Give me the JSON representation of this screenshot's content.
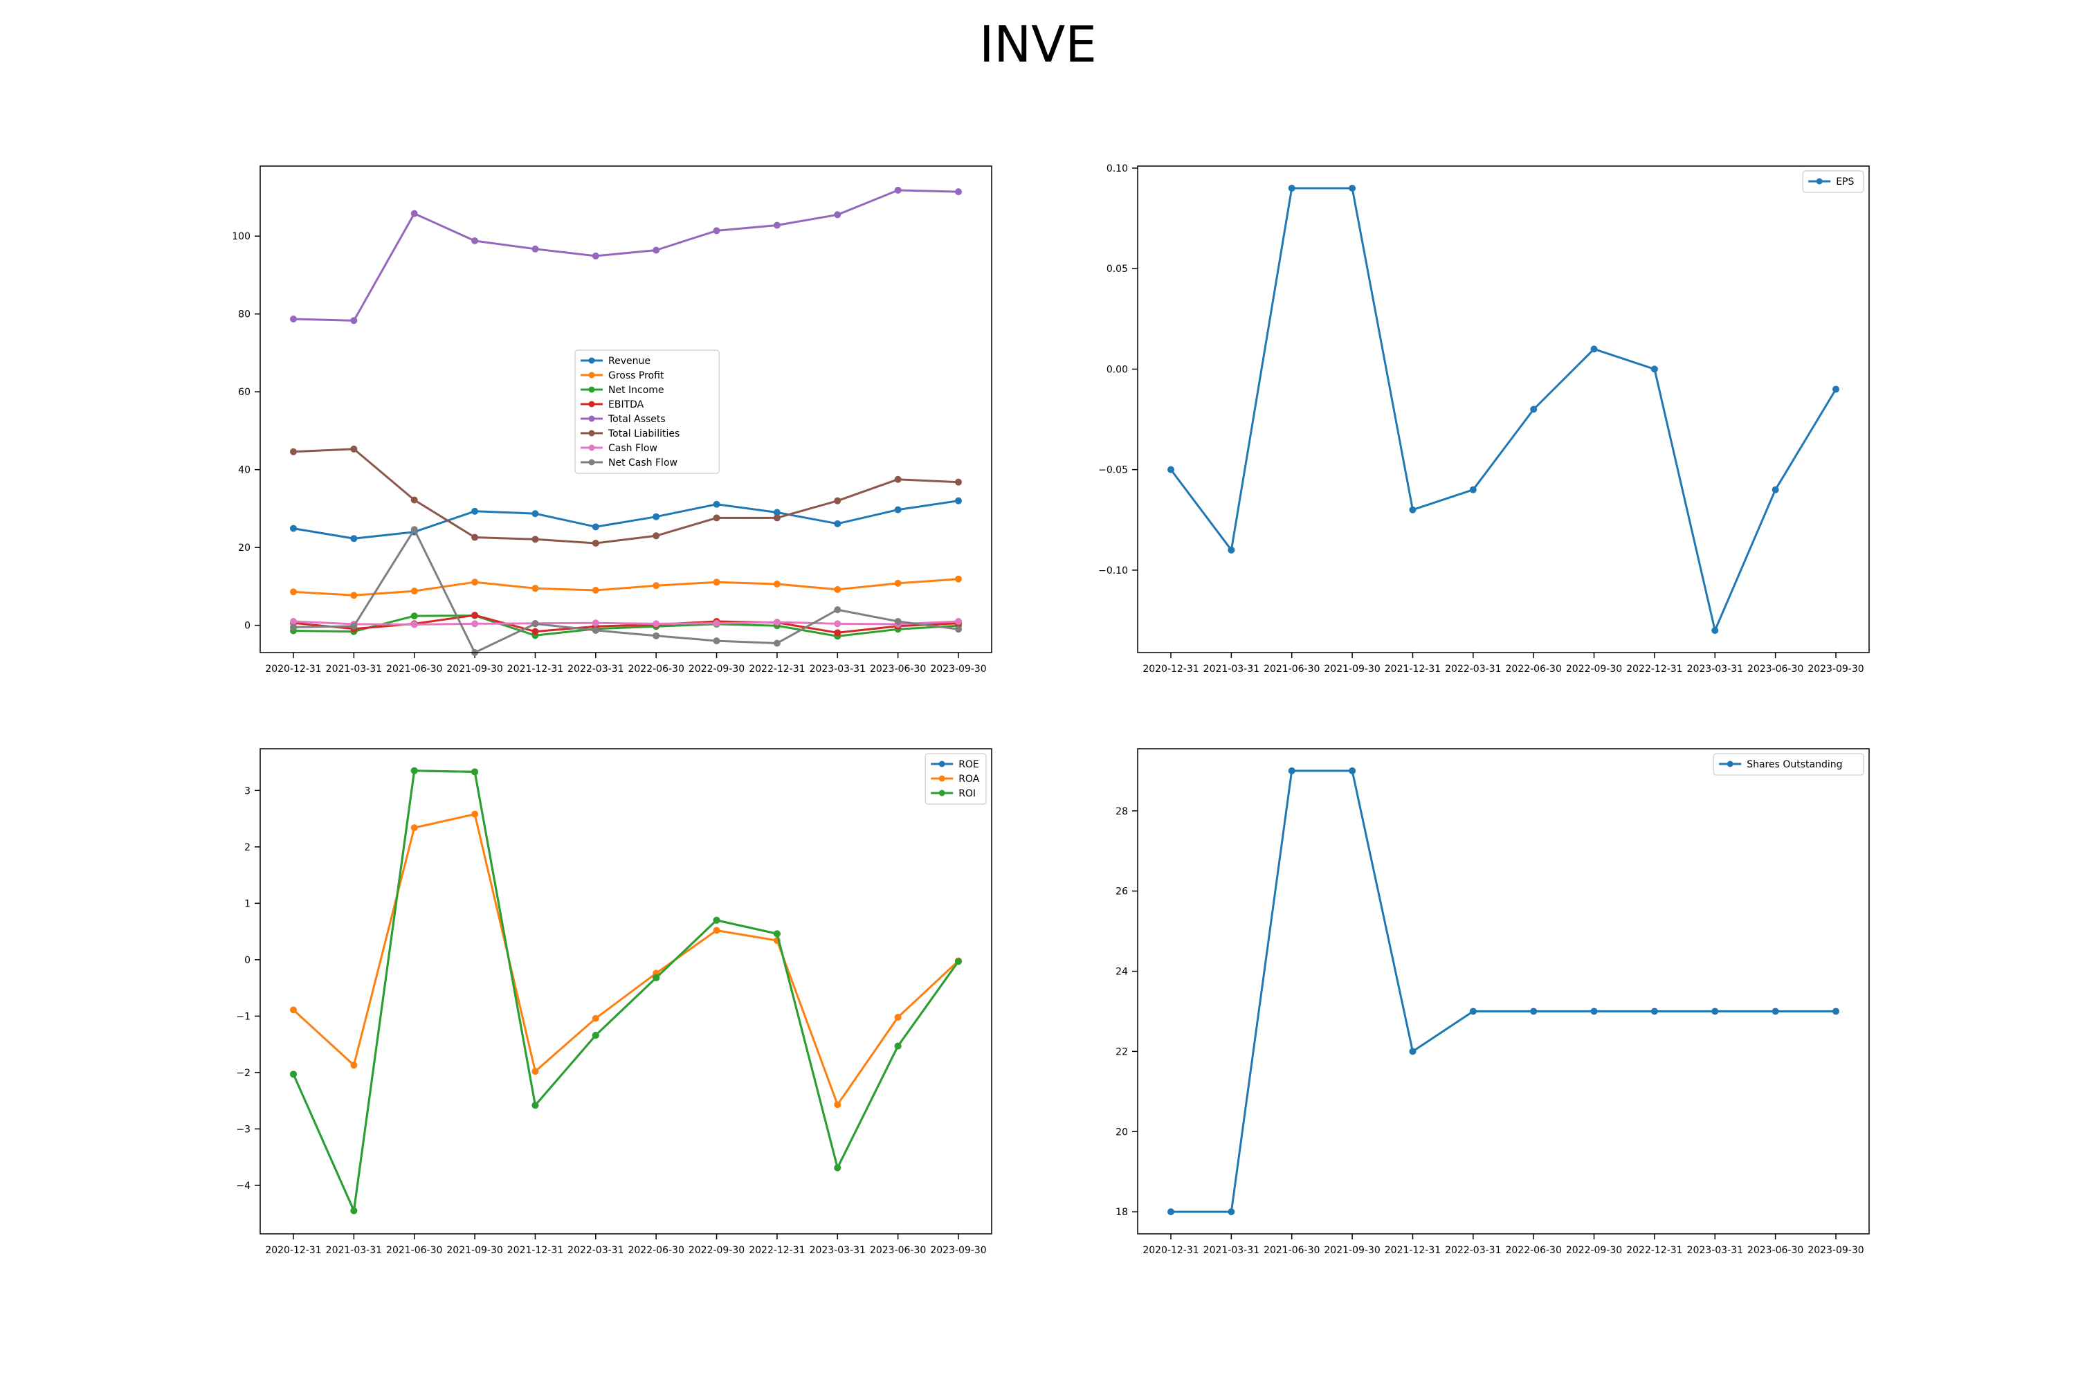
{
  "title": "INVE",
  "chart_data": [
    {
      "type": "line",
      "x": [
        "2020-12-31",
        "2021-03-31",
        "2021-06-30",
        "2021-09-30",
        "2021-12-31",
        "2022-03-31",
        "2022-06-30",
        "2022-09-30",
        "2022-12-31",
        "2023-03-31",
        "2023-06-30",
        "2023-09-30"
      ],
      "ylim": [
        -7,
        118
      ],
      "yticks": [
        0,
        20,
        40,
        60,
        80,
        100
      ],
      "legend": "center",
      "series": [
        {
          "name": "Revenue",
          "color": "#1f77b4",
          "values": [
            24.9,
            22.3,
            24.0,
            29.3,
            28.7,
            25.3,
            27.9,
            31.1,
            29.0,
            26.1,
            29.7,
            32.0
          ]
        },
        {
          "name": "Gross Profit",
          "color": "#ff7f0e",
          "values": [
            8.6,
            7.7,
            8.8,
            11.1,
            9.5,
            9.0,
            10.2,
            11.1,
            10.6,
            9.2,
            10.8,
            11.9
          ]
        },
        {
          "name": "Net Income",
          "color": "#2ca02c",
          "values": [
            -1.4,
            -1.6,
            2.4,
            2.5,
            -2.6,
            -0.9,
            -0.3,
            0.3,
            -0.1,
            -2.8,
            -1.0,
            -0.1
          ]
        },
        {
          "name": "EBITDA",
          "color": "#d62728",
          "values": [
            0.6,
            -0.9,
            0.4,
            2.6,
            -1.6,
            -0.3,
            0.2,
            1.0,
            0.7,
            -1.9,
            -0.2,
            0.5
          ]
        },
        {
          "name": "Total Assets",
          "color": "#9467bd",
          "values": [
            78.7,
            78.3,
            105.8,
            98.8,
            96.7,
            94.9,
            96.4,
            101.4,
            102.8,
            105.5,
            111.8,
            111.4
          ]
        },
        {
          "name": "Total Liabilities",
          "color": "#8c564b",
          "values": [
            44.6,
            45.3,
            32.2,
            22.6,
            22.1,
            21.1,
            23.0,
            27.6,
            27.6,
            32.0,
            37.5,
            36.8
          ]
        },
        {
          "name": "Cash Flow",
          "color": "#e377c2",
          "values": [
            1.0,
            0.3,
            0.2,
            0.4,
            0.5,
            0.6,
            0.4,
            0.5,
            0.8,
            0.4,
            0.3,
            1.0
          ]
        },
        {
          "name": "Net Cash Flow",
          "color": "#7f7f7f",
          "values": [
            -0.5,
            -0.2,
            24.6,
            -7.0,
            0.4,
            -1.3,
            -2.7,
            -4.0,
            -4.6,
            4.0,
            1.0,
            -1.0
          ]
        }
      ]
    },
    {
      "type": "line",
      "x": [
        "2020-12-31",
        "2021-03-31",
        "2021-06-30",
        "2021-09-30",
        "2021-12-31",
        "2022-03-31",
        "2022-06-30",
        "2022-09-30",
        "2022-12-31",
        "2023-03-31",
        "2023-06-30",
        "2023-09-30"
      ],
      "ylim": [
        -0.141,
        0.101
      ],
      "yticks": [
        -0.1,
        -0.05,
        0.0,
        0.05,
        0.1
      ],
      "ytick_labels": [
        "−0.10",
        "−0.05",
        "0.00",
        "0.05",
        "0.10"
      ],
      "legend": "top-right",
      "series": [
        {
          "name": "EPS",
          "color": "#1f77b4",
          "values": [
            -0.05,
            -0.09,
            0.09,
            0.09,
            -0.07,
            -0.06,
            -0.02,
            0.01,
            0.0,
            -0.13,
            -0.06,
            -0.01
          ]
        }
      ]
    },
    {
      "type": "line",
      "x": [
        "2020-12-31",
        "2021-03-31",
        "2021-06-30",
        "2021-09-30",
        "2021-12-31",
        "2022-03-31",
        "2022-06-30",
        "2022-09-30",
        "2022-12-31",
        "2023-03-31",
        "2023-06-30",
        "2023-09-30"
      ],
      "ylim": [
        -4.86,
        3.74
      ],
      "yticks": [
        -4,
        -3,
        -2,
        -1,
        0,
        1,
        2,
        3
      ],
      "ytick_labels": [
        "−4",
        "−3",
        "−2",
        "−1",
        "0",
        "1",
        "2",
        "3"
      ],
      "legend": "top-right",
      "series": [
        {
          "name": "ROE",
          "color": "#1f77b4",
          "values": [
            -2.03,
            -4.45,
            3.35,
            3.33,
            -2.58,
            -1.34,
            -0.32,
            0.7,
            0.46,
            -3.69,
            -1.53,
            -0.03
          ]
        },
        {
          "name": "ROA",
          "color": "#ff7f0e",
          "values": [
            -0.89,
            -1.87,
            2.34,
            2.58,
            -1.98,
            -1.04,
            -0.24,
            0.52,
            0.34,
            -2.57,
            -1.02,
            -0.02
          ]
        },
        {
          "name": "ROI",
          "color": "#2ca02c",
          "values": [
            -2.03,
            -4.45,
            3.35,
            3.33,
            -2.58,
            -1.34,
            -0.32,
            0.7,
            0.46,
            -3.69,
            -1.53,
            -0.03
          ]
        }
      ]
    },
    {
      "type": "line",
      "x": [
        "2020-12-31",
        "2021-03-31",
        "2021-06-30",
        "2021-09-30",
        "2021-12-31",
        "2022-03-31",
        "2022-06-30",
        "2022-09-30",
        "2022-12-31",
        "2023-03-31",
        "2023-06-30",
        "2023-09-30"
      ],
      "ylim": [
        17.45,
        29.55
      ],
      "yticks": [
        18,
        20,
        22,
        24,
        26,
        28
      ],
      "legend": "top-right",
      "series": [
        {
          "name": "Shares Outstanding",
          "color": "#1f77b4",
          "values": [
            18,
            18,
            29,
            29,
            22,
            23,
            23,
            23,
            23,
            23,
            23,
            23
          ]
        }
      ]
    }
  ]
}
